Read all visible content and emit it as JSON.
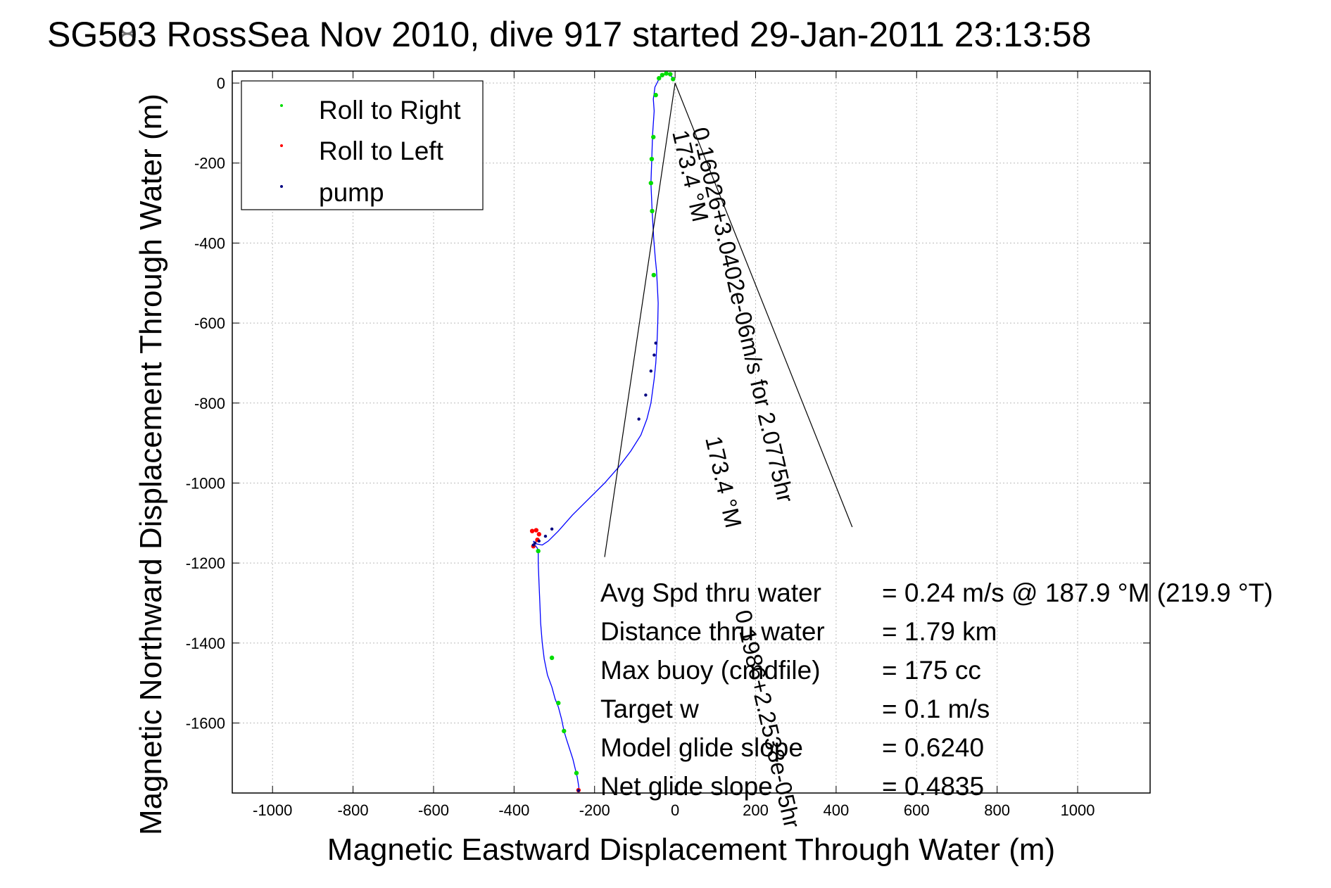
{
  "chart_data": {
    "type": "line",
    "title": "SG503 RossSea Nov 2010, dive 917 started 29-Jan-2011 23:13:58",
    "title_overlay": "SG583",
    "xlabel": "Magnetic Eastward Displacement Through Water (m)",
    "ylabel": "Magnetic Northward Displacement Through Water (m)",
    "xlim": [
      -1100,
      1180
    ],
    "ylim": [
      -1775,
      30
    ],
    "xticks": [
      -1000,
      -800,
      -600,
      -400,
      -200,
      0,
      200,
      400,
      600,
      800,
      1000
    ],
    "xtick_labels": [
      "-1000",
      "-800",
      "-600",
      "-400",
      "-200",
      "0",
      "200",
      "400",
      "600",
      "800",
      "1000"
    ],
    "yticks": [
      0,
      -200,
      -400,
      -600,
      -800,
      -1000,
      -1200,
      -1400,
      -1600
    ],
    "ytick_labels": [
      "0",
      "-200",
      "-400",
      "-600",
      "-800",
      "-1000",
      "-1200",
      "-1400",
      "-1600"
    ],
    "grid": true,
    "legend_position": "top-left",
    "legend": [
      "Roll to Right",
      "Roll to Left",
      "pump"
    ],
    "colors": {
      "track": "#0000ff",
      "roll_right": "#00dd00",
      "roll_left": "#ff0000",
      "pump": "#000080",
      "current_line": "#000000",
      "grid": "#bbbbbb"
    },
    "series": [
      {
        "name": "track",
        "x": [
          -5,
          -12,
          -22,
          -32,
          -40,
          -45,
          -50,
          -52,
          -54,
          -52,
          -56,
          -58,
          -60,
          -57,
          -53,
          -49,
          -46,
          -44,
          -42,
          -43,
          -45,
          -48,
          -52,
          -60,
          -70,
          -85,
          -110,
          -140,
          -175,
          -215,
          -255,
          -290,
          -315,
          -330,
          -345,
          -352,
          -348,
          -342,
          -340,
          -340,
          -338,
          -336,
          -334,
          -330,
          -325,
          -317,
          -306,
          -298,
          -290,
          -282,
          -276,
          -270,
          -262,
          -254,
          -248,
          -243,
          -240,
          -238
        ],
        "y": [
          10,
          22,
          24,
          20,
          10,
          0,
          -10,
          -25,
          -40,
          -70,
          -130,
          -190,
          -250,
          -320,
          -390,
          -440,
          -470,
          -510,
          -550,
          -600,
          -650,
          -700,
          -740,
          -800,
          -840,
          -880,
          -920,
          -960,
          -1000,
          -1040,
          -1080,
          -1120,
          -1145,
          -1155,
          -1152,
          -1145,
          -1155,
          -1163,
          -1175,
          -1200,
          -1250,
          -1300,
          -1350,
          -1400,
          -1440,
          -1480,
          -1510,
          -1540,
          -1560,
          -1590,
          -1620,
          -1640,
          -1665,
          -1690,
          -1715,
          -1735,
          -1755,
          -1770
        ]
      },
      {
        "name": "Roll to Right",
        "x": [
          -5,
          -12,
          -22,
          -32,
          -40,
          -48,
          -54,
          -58,
          -60,
          -57,
          -53,
          -340,
          -306,
          -290,
          -276,
          -245
        ],
        "y": [
          10,
          22,
          24,
          20,
          12,
          -30,
          -135,
          -190,
          -250,
          -320,
          -480,
          -1170,
          -1437,
          -1550,
          -1620,
          -1725
        ]
      },
      {
        "name": "Roll to Left",
        "x": [
          -355,
          -345,
          -338,
          -342,
          -352,
          -240
        ],
        "y": [
          -1120,
          -1118,
          -1128,
          -1142,
          -1158,
          -1768
        ]
      },
      {
        "name": "pump",
        "x": [
          -48,
          -52,
          -60,
          -73,
          -90,
          -306,
          -322,
          -338,
          -348,
          -352,
          -240
        ],
        "y": [
          -650,
          -680,
          -720,
          -780,
          -840,
          -1115,
          -1133,
          -1145,
          -1150,
          -1155,
          -1769
        ]
      }
    ],
    "current_lines": [
      {
        "x": [
          0,
          -175
        ],
        "y": [
          0,
          -1185
        ]
      },
      {
        "x": [
          0,
          440
        ],
        "y": [
          0,
          -1110
        ]
      }
    ],
    "rotated_labels": [
      "173.4 °M",
      "0.16026+3.0402e-06m/s for 2.0775hr",
      "173.4 °M",
      "0.1986+2.2538e-05hr"
    ],
    "stats": [
      {
        "label": "Avg Spd thru water",
        "value": "=  0.24 m/s @ 187.9 °M (219.9 °T)"
      },
      {
        "label": "Distance thru water",
        "value": "=  1.79 km"
      },
      {
        "label": "Max buoy (cmdfile)",
        "value": "= 175 cc"
      },
      {
        "label": "Target w",
        "value": "= 0.1 m/s"
      },
      {
        "label": "Model glide slope",
        "value": "= 0.6240"
      },
      {
        "label": "Net glide slope",
        "value": "= 0.4835"
      }
    ]
  }
}
